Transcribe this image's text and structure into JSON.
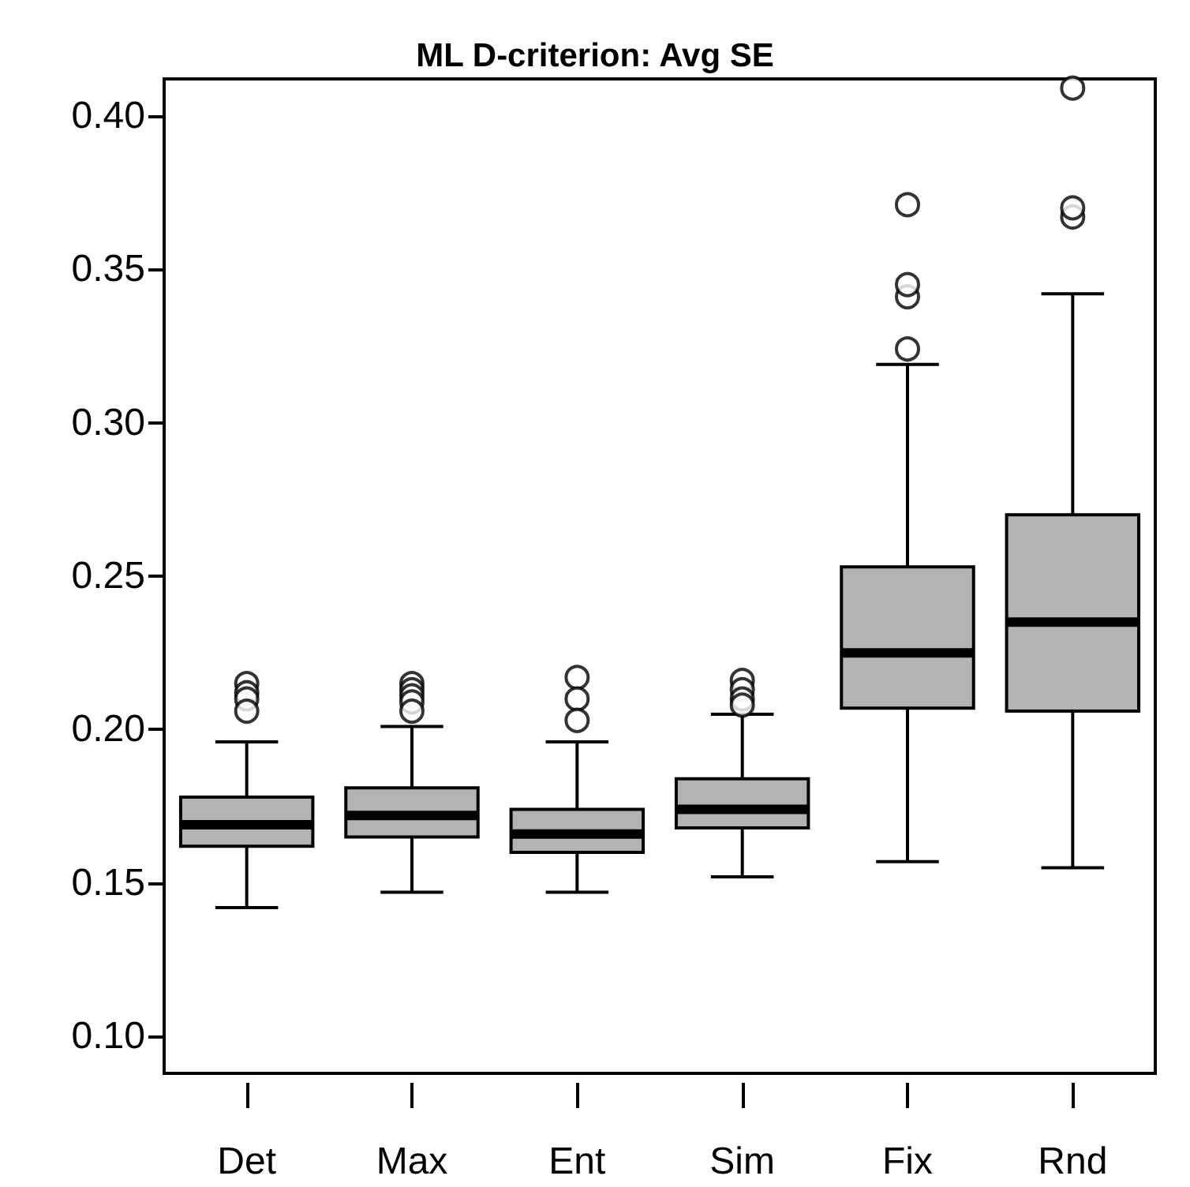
{
  "chart_data": {
    "type": "box",
    "title": "ML D-criterion: Avg SE",
    "categories": [
      "Det",
      "Max",
      "Ent",
      "Sim",
      "Fix",
      "Rnd"
    ],
    "color": "#b3b3b3",
    "marker": "circle",
    "grid": false,
    "ylim": [
      0.088,
      0.412
    ],
    "yticks": [
      {
        "value": 0.1,
        "label": "0.10"
      },
      {
        "value": 0.15,
        "label": "0.15"
      },
      {
        "value": 0.2,
        "label": "0.20"
      },
      {
        "value": 0.25,
        "label": "0.25"
      },
      {
        "value": 0.3,
        "label": "0.30"
      },
      {
        "value": 0.35,
        "label": "0.35"
      },
      {
        "value": 0.4,
        "label": "0.40"
      }
    ],
    "boxes": [
      {
        "low": 0.142,
        "q1": 0.162,
        "median": 0.169,
        "q3": 0.178,
        "high": 0.196,
        "outliers": [
          0.215,
          0.212,
          0.21,
          0.206
        ]
      },
      {
        "low": 0.147,
        "q1": 0.165,
        "median": 0.172,
        "q3": 0.181,
        "high": 0.201,
        "outliers": [
          0.215,
          0.213,
          0.211,
          0.209,
          0.206
        ]
      },
      {
        "low": 0.147,
        "q1": 0.16,
        "median": 0.166,
        "q3": 0.174,
        "high": 0.196,
        "outliers": [
          0.217,
          0.21,
          0.203
        ]
      },
      {
        "low": 0.152,
        "q1": 0.168,
        "median": 0.174,
        "q3": 0.184,
        "high": 0.205,
        "outliers": [
          0.216,
          0.213,
          0.21,
          0.208
        ]
      },
      {
        "low": 0.157,
        "q1": 0.207,
        "median": 0.225,
        "q3": 0.253,
        "high": 0.319,
        "outliers": [
          0.324,
          0.341,
          0.345,
          0.371
        ]
      },
      {
        "low": 0.155,
        "q1": 0.206,
        "median": 0.235,
        "q3": 0.27,
        "high": 0.342,
        "outliers": [
          0.367,
          0.37,
          0.409
        ]
      }
    ]
  }
}
